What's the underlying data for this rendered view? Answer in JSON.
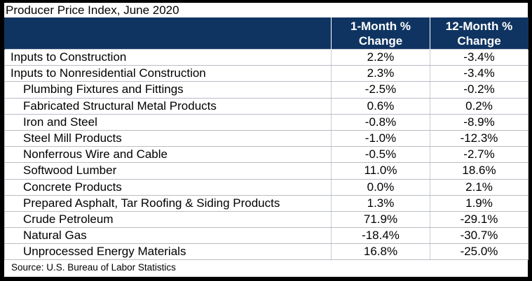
{
  "title": "Producer Price Index, June 2020",
  "chart_data": {
    "type": "table",
    "columns": [
      "",
      "1-Month % Change",
      "12-Month % Change"
    ],
    "column_headers": [
      {
        "line1": "1-Month %",
        "line2": "Change"
      },
      {
        "line1": "12-Month %",
        "line2": "Change"
      }
    ],
    "rows": [
      {
        "label": "Inputs to Construction",
        "indent": false,
        "one_month": "2.2%",
        "twelve_month": "-3.4%"
      },
      {
        "label": "Inputs to Nonresidential Construction",
        "indent": false,
        "one_month": "2.3%",
        "twelve_month": "-3.4%"
      },
      {
        "label": "Plumbing Fixtures and Fittings",
        "indent": true,
        "one_month": "-2.5%",
        "twelve_month": "-0.2%"
      },
      {
        "label": "Fabricated Structural Metal Products",
        "indent": true,
        "one_month": "0.6%",
        "twelve_month": "0.2%"
      },
      {
        "label": "Iron and Steel",
        "indent": true,
        "one_month": "-0.8%",
        "twelve_month": "-8.9%"
      },
      {
        "label": "Steel Mill Products",
        "indent": true,
        "one_month": "-1.0%",
        "twelve_month": "-12.3%"
      },
      {
        "label": "Nonferrous Wire and Cable",
        "indent": true,
        "one_month": "-0.5%",
        "twelve_month": "-2.7%"
      },
      {
        "label": "Softwood Lumber",
        "indent": true,
        "one_month": "11.0%",
        "twelve_month": "18.6%"
      },
      {
        "label": "Concrete Products",
        "indent": true,
        "one_month": "0.0%",
        "twelve_month": "2.1%"
      },
      {
        "label": "Prepared Asphalt, Tar Roofing & Siding Products",
        "indent": true,
        "one_month": "1.3%",
        "twelve_month": "1.9%"
      },
      {
        "label": "Crude Petroleum",
        "indent": true,
        "one_month": "71.9%",
        "twelve_month": "-29.1%"
      },
      {
        "label": "Natural Gas",
        "indent": true,
        "one_month": "-18.4%",
        "twelve_month": "-30.7%"
      },
      {
        "label": "Unprocessed Energy Materials",
        "indent": true,
        "one_month": "16.8%",
        "twelve_month": "-25.0%"
      }
    ]
  },
  "source": "Source: U.S. Bureau of Labor Statistics",
  "colors": {
    "header_bg": "#0f3461",
    "header_text": "#ffffff",
    "border": "#c8ccd2",
    "outer_bg": "#000000"
  }
}
